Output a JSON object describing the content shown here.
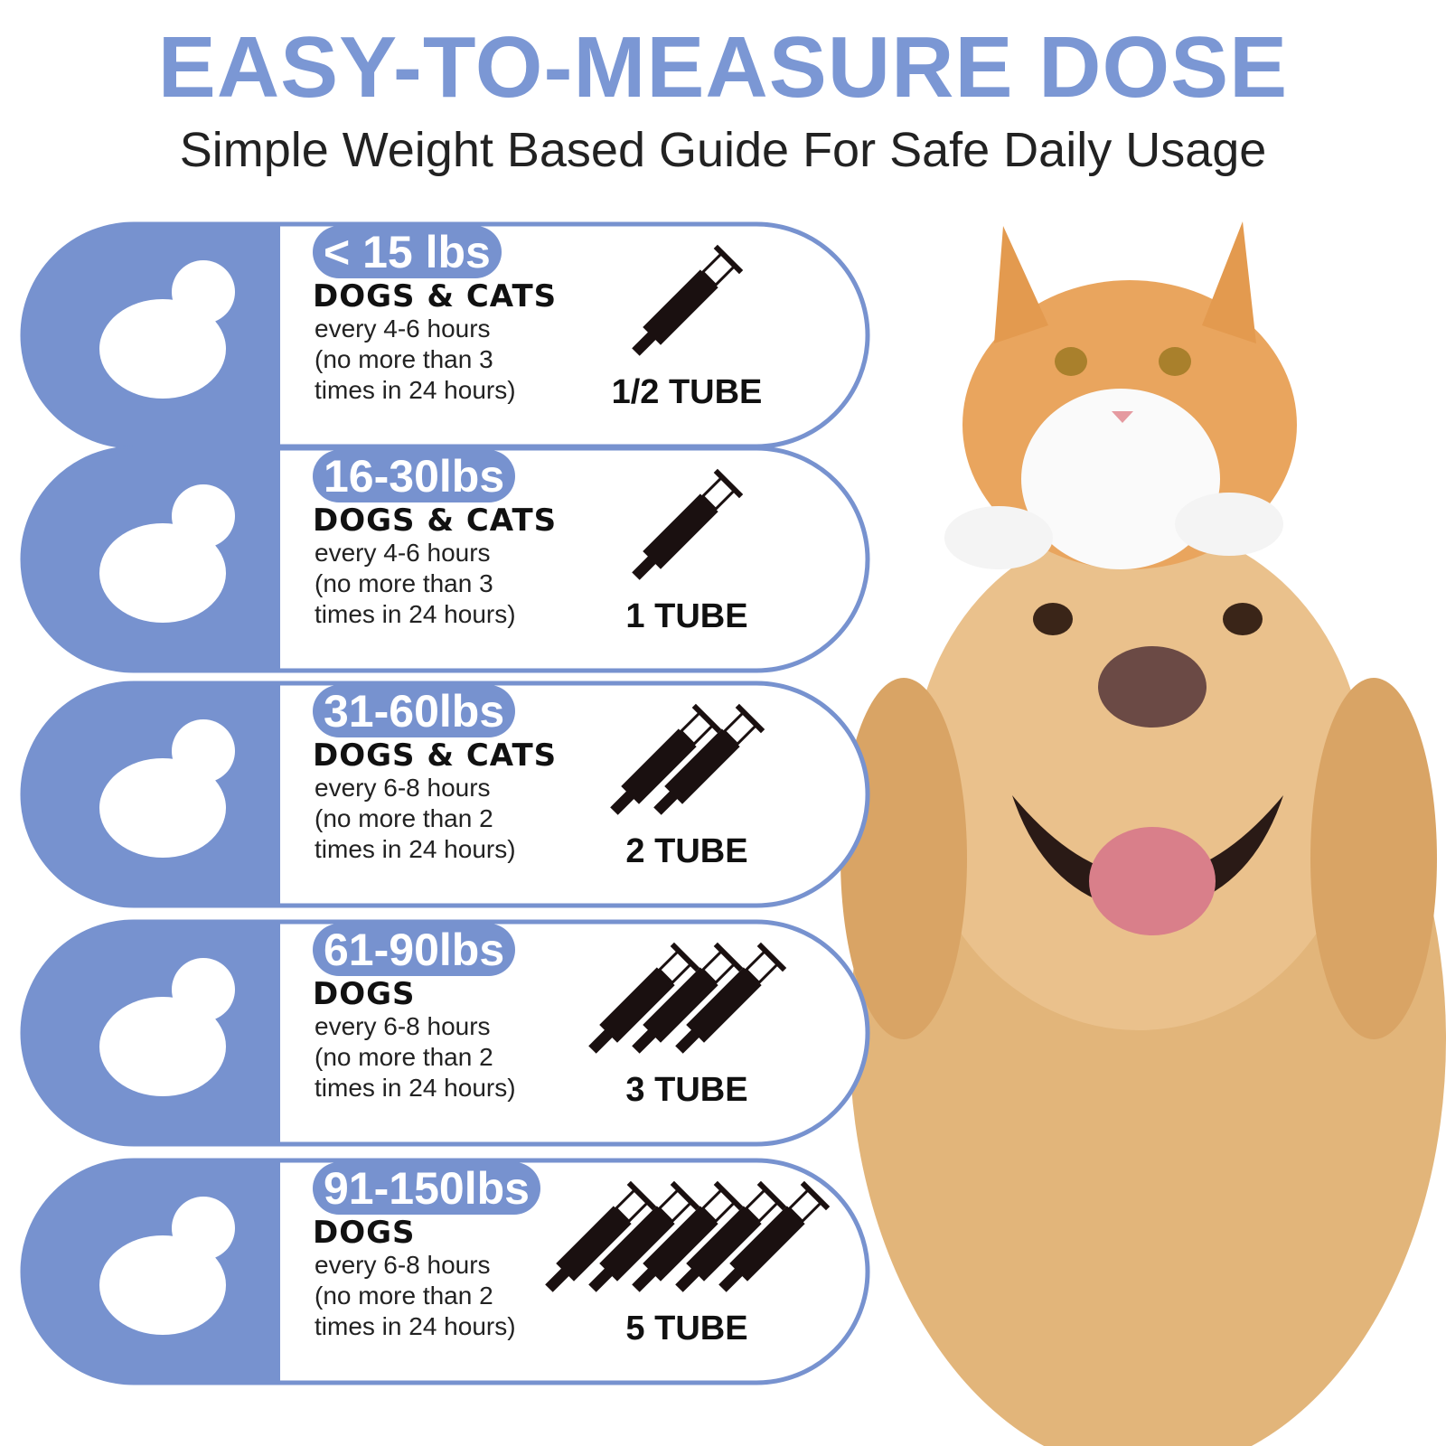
{
  "header": {
    "title": "EASY-TO-MEASURE DOSE",
    "subtitle": "Simple Weight Based Guide For Safe Daily Usage"
  },
  "rows": [
    {
      "weight": "< 15 lbs",
      "animals": "DOGS & CATS",
      "lines": [
        "every 4-6 hours",
        "(no more than 3",
        "times in 24 hours)"
      ],
      "dose": "1/2 TUBE"
    },
    {
      "weight": "16-30lbs",
      "animals": "DOGS & CATS",
      "lines": [
        "every 4-6 hours",
        "(no more than 3",
        "times in 24 hours)"
      ],
      "dose": "1 TUBE"
    },
    {
      "weight": "31-60lbs",
      "animals": "DOGS & CATS",
      "lines": [
        "every 6-8 hours",
        "(no more than 2",
        "times in 24 hours)"
      ],
      "dose": "2 TUBE"
    },
    {
      "weight": "61-90lbs",
      "animals": "DOGS",
      "lines": [
        "every 6-8 hours",
        "(no more than 2",
        "times in 24 hours)"
      ],
      "dose": "3 TUBE"
    },
    {
      "weight": "91-150lbs",
      "animals": "DOGS",
      "lines": [
        "every 6-8 hours",
        "(no more than 2",
        "times in 24 hours)"
      ],
      "dose": "5 TUBE"
    }
  ]
}
